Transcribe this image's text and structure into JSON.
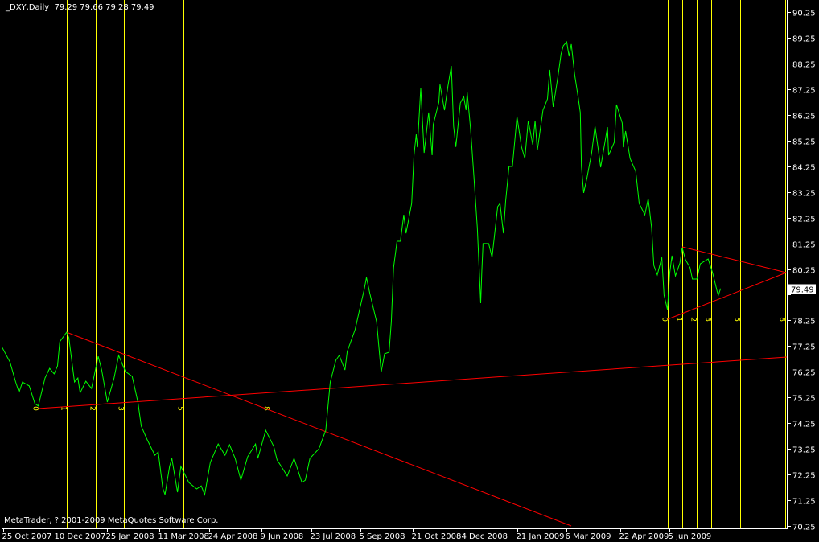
{
  "header": {
    "symbol": "_DXY,Daily",
    "ohlc": "79.29 79.66 79.28 79.49"
  },
  "footer": {
    "copyright": "MetaTrader, ? 2001-2009 MetaQuotes Software Corp."
  },
  "colors": {
    "background": "#000000",
    "price": "#00ff00",
    "trendline": "#ff0000",
    "fib_zone": "#ffff00",
    "bid_line": "#a0a0a0",
    "axis": "#ffffff"
  },
  "chart_data": {
    "type": "line",
    "title": "_DXY,Daily",
    "timeframe": "Daily",
    "ylim": [
      70.25,
      90.25
    ],
    "y_ticks": [
      "90.25",
      "89.25",
      "88.25",
      "87.25",
      "86.25",
      "85.25",
      "84.25",
      "83.25",
      "82.25",
      "81.25",
      "80.25",
      "79.25",
      "78.25",
      "77.25",
      "76.25",
      "75.25",
      "74.25",
      "73.25",
      "72.25",
      "71.25",
      "70.25"
    ],
    "x_ticks": [
      {
        "label": "25 Oct 2007",
        "date": "2007-10-25"
      },
      {
        "label": "10 Dec 2007",
        "date": "2007-12-10"
      },
      {
        "label": "25 Jan 2008",
        "date": "2008-01-25"
      },
      {
        "label": "11 Mar 2008",
        "date": "2008-03-11"
      },
      {
        "label": "24 Apr 2008",
        "date": "2008-04-24"
      },
      {
        "label": "9 Jun 2008",
        "date": "2008-06-09"
      },
      {
        "label": "23 Jul 2008",
        "date": "2008-07-23"
      },
      {
        "label": "5 Sep 2008",
        "date": "2008-09-05"
      },
      {
        "label": "21 Oct 2008",
        "date": "2008-10-21"
      },
      {
        "label": "4 Dec 2008",
        "date": "2008-12-04"
      },
      {
        "label": "21 Jan 2009",
        "date": "2009-01-21"
      },
      {
        "label": "6 Mar 2009",
        "date": "2009-03-06"
      },
      {
        "label": "22 Apr 2009",
        "date": "2009-04-22"
      },
      {
        "label": "5 Jun 2009",
        "date": "2009-06-05"
      }
    ],
    "current_price": "79.49",
    "grid": false,
    "series": [
      {
        "points": [
          [
            "2007-10-24",
            77.2
          ],
          [
            "2007-10-31",
            76.63
          ],
          [
            "2007-11-05",
            75.85
          ],
          [
            "2007-11-08",
            75.45
          ],
          [
            "2007-11-11",
            75.85
          ],
          [
            "2007-11-17",
            75.7
          ],
          [
            "2007-11-22",
            75.01
          ],
          [
            "2007-11-25",
            74.92
          ],
          [
            "2007-12-01",
            76.01
          ],
          [
            "2007-12-05",
            76.38
          ],
          [
            "2007-12-09",
            76.17
          ],
          [
            "2007-12-12",
            76.48
          ],
          [
            "2007-12-14",
            77.42
          ],
          [
            "2007-12-20",
            77.79
          ],
          [
            "2007-12-22",
            77.57
          ],
          [
            "2007-12-27",
            75.85
          ],
          [
            "2007-12-30",
            76.01
          ],
          [
            "2008-01-01",
            75.43
          ],
          [
            "2008-01-06",
            75.88
          ],
          [
            "2008-01-11",
            75.6
          ],
          [
            "2008-01-17",
            76.85
          ],
          [
            "2008-01-20",
            76.32
          ],
          [
            "2008-01-25",
            75.07
          ],
          [
            "2008-01-31",
            76.01
          ],
          [
            "2008-02-04",
            76.89
          ],
          [
            "2008-02-10",
            76.26
          ],
          [
            "2008-02-16",
            76.07
          ],
          [
            "2008-02-21",
            75.07
          ],
          [
            "2008-02-24",
            74.13
          ],
          [
            "2008-02-29",
            73.63
          ],
          [
            "2008-03-07",
            73.0
          ],
          [
            "2008-03-10",
            73.13
          ],
          [
            "2008-03-14",
            71.72
          ],
          [
            "2008-03-16",
            71.47
          ],
          [
            "2008-03-20",
            72.57
          ],
          [
            "2008-03-22",
            72.88
          ],
          [
            "2008-03-27",
            71.56
          ],
          [
            "2008-03-30",
            72.57
          ],
          [
            "2008-04-06",
            71.94
          ],
          [
            "2008-04-13",
            71.69
          ],
          [
            "2008-04-17",
            71.81
          ],
          [
            "2008-04-20",
            71.47
          ],
          [
            "2008-04-25",
            72.72
          ],
          [
            "2008-05-02",
            73.44
          ],
          [
            "2008-05-08",
            73.0
          ],
          [
            "2008-05-12",
            73.41
          ],
          [
            "2008-05-17",
            72.88
          ],
          [
            "2008-05-22",
            72.03
          ],
          [
            "2008-05-28",
            72.94
          ],
          [
            "2008-06-04",
            73.44
          ],
          [
            "2008-06-06",
            72.88
          ],
          [
            "2008-06-13",
            73.97
          ],
          [
            "2008-06-20",
            73.35
          ],
          [
            "2008-06-23",
            72.82
          ],
          [
            "2008-06-29",
            72.41
          ],
          [
            "2008-07-02",
            72.19
          ],
          [
            "2008-07-08",
            72.88
          ],
          [
            "2008-07-15",
            71.94
          ],
          [
            "2008-07-18",
            72.03
          ],
          [
            "2008-07-22",
            72.88
          ],
          [
            "2008-07-30",
            73.25
          ],
          [
            "2008-08-05",
            73.97
          ],
          [
            "2008-08-09",
            75.85
          ],
          [
            "2008-08-14",
            76.7
          ],
          [
            "2008-08-17",
            76.89
          ],
          [
            "2008-08-22",
            76.32
          ],
          [
            "2008-08-24",
            77.04
          ],
          [
            "2008-08-31",
            77.89
          ],
          [
            "2008-09-04",
            78.67
          ],
          [
            "2008-09-08",
            79.45
          ],
          [
            "2008-09-10",
            79.92
          ],
          [
            "2008-09-13",
            79.3
          ],
          [
            "2008-09-19",
            78.2
          ],
          [
            "2008-09-23",
            76.23
          ],
          [
            "2008-09-26",
            76.95
          ],
          [
            "2008-09-30",
            77.01
          ],
          [
            "2008-10-02",
            78.2
          ],
          [
            "2008-10-04",
            80.3
          ],
          [
            "2008-10-07",
            81.33
          ],
          [
            "2008-10-10",
            81.33
          ],
          [
            "2008-10-13",
            82.36
          ],
          [
            "2008-10-15",
            81.64
          ],
          [
            "2008-10-20",
            82.8
          ],
          [
            "2008-10-22",
            84.68
          ],
          [
            "2008-10-24",
            85.49
          ],
          [
            "2008-10-25",
            84.99
          ],
          [
            "2008-10-28",
            87.28
          ],
          [
            "2008-10-31",
            84.77
          ],
          [
            "2008-11-04",
            86.34
          ],
          [
            "2008-11-07",
            84.68
          ],
          [
            "2008-11-08",
            85.87
          ],
          [
            "2008-11-13",
            86.74
          ],
          [
            "2008-11-14",
            87.43
          ],
          [
            "2008-11-18",
            86.43
          ],
          [
            "2008-11-21",
            87.37
          ],
          [
            "2008-11-24",
            88.15
          ],
          [
            "2008-11-26",
            85.81
          ],
          [
            "2008-11-28",
            85.0
          ],
          [
            "2008-12-02",
            86.71
          ],
          [
            "2008-12-05",
            86.96
          ],
          [
            "2008-12-07",
            86.43
          ],
          [
            "2008-12-08",
            87.12
          ],
          [
            "2008-12-11",
            85.71
          ],
          [
            "2008-12-14",
            83.83
          ],
          [
            "2008-12-17",
            81.86
          ],
          [
            "2008-12-20",
            78.92
          ],
          [
            "2008-12-21",
            80.17
          ],
          [
            "2008-12-22",
            81.24
          ],
          [
            "2008-12-27",
            81.24
          ],
          [
            "2008-12-30",
            80.7
          ],
          [
            "2009-01-04",
            82.68
          ],
          [
            "2009-01-06",
            82.8
          ],
          [
            "2009-01-09",
            81.64
          ],
          [
            "2009-01-11",
            82.89
          ],
          [
            "2009-01-14",
            84.24
          ],
          [
            "2009-01-17",
            84.24
          ],
          [
            "2009-01-21",
            86.18
          ],
          [
            "2009-01-25",
            85.0
          ],
          [
            "2009-01-28",
            84.55
          ],
          [
            "2009-01-31",
            86.02
          ],
          [
            "2009-02-04",
            85.09
          ],
          [
            "2009-02-06",
            86.02
          ],
          [
            "2009-02-08",
            84.87
          ],
          [
            "2009-02-13",
            86.43
          ],
          [
            "2009-02-17",
            86.87
          ],
          [
            "2009-02-19",
            88.0
          ],
          [
            "2009-02-22",
            86.56
          ],
          [
            "2009-02-26",
            87.68
          ],
          [
            "2009-03-01",
            88.62
          ],
          [
            "2009-03-03",
            88.94
          ],
          [
            "2009-03-06",
            89.09
          ],
          [
            "2009-03-08",
            88.53
          ],
          [
            "2009-03-10",
            89.0
          ],
          [
            "2009-03-13",
            87.81
          ],
          [
            "2009-03-16",
            86.96
          ],
          [
            "2009-03-18",
            86.34
          ],
          [
            "2009-03-19",
            84.24
          ],
          [
            "2009-03-21",
            83.21
          ],
          [
            "2009-03-24",
            83.83
          ],
          [
            "2009-03-28",
            84.77
          ],
          [
            "2009-03-31",
            85.81
          ],
          [
            "2009-04-03",
            84.87
          ],
          [
            "2009-04-05",
            84.21
          ],
          [
            "2009-04-11",
            85.77
          ],
          [
            "2009-04-12",
            84.68
          ],
          [
            "2009-04-17",
            85.18
          ],
          [
            "2009-04-19",
            86.65
          ],
          [
            "2009-04-24",
            85.93
          ],
          [
            "2009-04-25",
            84.99
          ],
          [
            "2009-04-27",
            85.62
          ],
          [
            "2009-05-01",
            84.55
          ],
          [
            "2009-05-06",
            84.05
          ],
          [
            "2009-05-09",
            82.8
          ],
          [
            "2009-05-14",
            82.36
          ],
          [
            "2009-05-17",
            82.99
          ],
          [
            "2009-05-20",
            81.86
          ],
          [
            "2009-05-22",
            80.39
          ],
          [
            "2009-05-25",
            80.02
          ],
          [
            "2009-05-29",
            80.7
          ],
          [
            "2009-05-31",
            79.23
          ],
          [
            "2009-06-03",
            78.67
          ],
          [
            "2009-06-05",
            80.08
          ],
          [
            "2009-06-07",
            80.77
          ],
          [
            "2009-06-10",
            79.98
          ],
          [
            "2009-06-14",
            80.48
          ],
          [
            "2009-06-16",
            81.08
          ],
          [
            "2009-06-19",
            80.61
          ],
          [
            "2009-06-23",
            80.3
          ],
          [
            "2009-06-25",
            79.86
          ],
          [
            "2009-06-29",
            79.86
          ],
          [
            "2009-07-02",
            80.45
          ],
          [
            "2009-07-09",
            80.64
          ],
          [
            "2009-07-13",
            80.08
          ],
          [
            "2009-07-17",
            79.36
          ],
          [
            "2009-07-18",
            79.23
          ],
          [
            "2009-07-20",
            79.49
          ]
        ]
      }
    ],
    "trendlines": [
      {
        "from": [
          "2007-11-25",
          74.82
        ],
        "to": [
          "2009-09-16",
          76.82
        ],
        "ray": true
      },
      {
        "from": [
          "2007-12-20",
          77.79
        ],
        "to": [
          "2009-03-10",
          70.25
        ],
        "ray": false
      },
      {
        "from": [
          "2009-06-03",
          78.29
        ],
        "to": [
          "2009-09-16",
          80.11
        ],
        "ray": false
      },
      {
        "from": [
          "2009-06-16",
          81.11
        ],
        "to": [
          "2009-09-16",
          80.11
        ],
        "ray": false
      }
    ],
    "fibonacci_time_zones": [
      {
        "levels": [
          "0",
          "1",
          "2",
          "3",
          "5",
          "8"
        ],
        "dates": [
          "2007-11-25",
          "2007-12-20",
          "2008-01-15",
          "2008-02-09",
          "2008-04-01",
          "2008-06-16"
        ],
        "label_price": 74.82
      },
      {
        "levels": [
          "0",
          "1",
          "2",
          "3",
          "5",
          "8"
        ],
        "dates": [
          "2009-06-03",
          "2009-06-16",
          "2009-06-29",
          "2009-07-12",
          "2009-08-06",
          "2009-09-15"
        ],
        "label_price": 78.29
      }
    ]
  }
}
